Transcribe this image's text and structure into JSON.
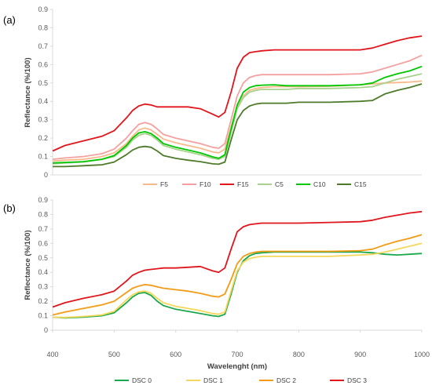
{
  "chart_data": [
    {
      "type": "line",
      "panel_label": "(a)",
      "ylabel": "Reflectance (%/100)",
      "xlabel": "",
      "xlim": [
        400,
        1000
      ],
      "ylim": [
        0,
        0.9
      ],
      "yticks": [
        "0",
        "0.1",
        "0.2",
        "0.3",
        "0.4",
        "0.5",
        "0.6",
        "0.7",
        "0.8",
        "0.9"
      ],
      "grid": false,
      "legend": "bottom",
      "x": [
        400,
        420,
        450,
        480,
        500,
        520,
        530,
        540,
        550,
        560,
        570,
        580,
        600,
        620,
        640,
        660,
        670,
        680,
        690,
        700,
        710,
        720,
        730,
        740,
        760,
        780,
        800,
        850,
        900,
        920,
        940,
        960,
        980,
        1000
      ],
      "series": [
        {
          "name": "F5",
          "color": "#f8b98a",
          "values": [
            0.075,
            0.08,
            0.085,
            0.1,
            0.12,
            0.17,
            0.21,
            0.245,
            0.255,
            0.245,
            0.22,
            0.195,
            0.175,
            0.16,
            0.145,
            0.125,
            0.12,
            0.14,
            0.26,
            0.37,
            0.43,
            0.46,
            0.47,
            0.475,
            0.48,
            0.48,
            0.48,
            0.482,
            0.49,
            0.495,
            0.5,
            0.502,
            0.505,
            0.51
          ]
        },
        {
          "name": "F10",
          "color": "#f4a0a0",
          "values": [
            0.085,
            0.092,
            0.1,
            0.115,
            0.14,
            0.2,
            0.24,
            0.275,
            0.285,
            0.275,
            0.25,
            0.22,
            0.2,
            0.185,
            0.17,
            0.15,
            0.145,
            0.17,
            0.3,
            0.43,
            0.5,
            0.53,
            0.54,
            0.545,
            0.545,
            0.545,
            0.545,
            0.545,
            0.55,
            0.56,
            0.58,
            0.6,
            0.62,
            0.65
          ]
        },
        {
          "name": "F15",
          "color": "#e0161c",
          "values": [
            0.13,
            0.16,
            0.185,
            0.21,
            0.24,
            0.31,
            0.35,
            0.375,
            0.385,
            0.38,
            0.37,
            0.37,
            0.37,
            0.37,
            0.36,
            0.33,
            0.315,
            0.34,
            0.45,
            0.58,
            0.64,
            0.665,
            0.67,
            0.675,
            0.68,
            0.68,
            0.68,
            0.68,
            0.68,
            0.69,
            0.71,
            0.73,
            0.745,
            0.755
          ]
        },
        {
          "name": "C5",
          "color": "#a8d18d",
          "values": [
            0.06,
            0.065,
            0.07,
            0.085,
            0.1,
            0.15,
            0.19,
            0.215,
            0.225,
            0.215,
            0.19,
            0.16,
            0.14,
            0.125,
            0.11,
            0.09,
            0.085,
            0.1,
            0.23,
            0.36,
            0.42,
            0.45,
            0.46,
            0.465,
            0.465,
            0.465,
            0.47,
            0.47,
            0.475,
            0.48,
            0.5,
            0.52,
            0.535,
            0.55
          ]
        },
        {
          "name": "C10",
          "color": "#00c800",
          "values": [
            0.065,
            0.068,
            0.072,
            0.085,
            0.105,
            0.16,
            0.2,
            0.228,
            0.235,
            0.225,
            0.2,
            0.17,
            0.15,
            0.135,
            0.12,
            0.098,
            0.09,
            0.11,
            0.25,
            0.38,
            0.45,
            0.475,
            0.485,
            0.488,
            0.49,
            0.485,
            0.485,
            0.485,
            0.49,
            0.5,
            0.53,
            0.55,
            0.565,
            0.59
          ]
        },
        {
          "name": "C15",
          "color": "#4e7b2a",
          "values": [
            0.045,
            0.045,
            0.05,
            0.055,
            0.07,
            0.11,
            0.135,
            0.15,
            0.155,
            0.15,
            0.13,
            0.105,
            0.09,
            0.08,
            0.072,
            0.06,
            0.058,
            0.07,
            0.19,
            0.3,
            0.35,
            0.375,
            0.385,
            0.39,
            0.39,
            0.39,
            0.395,
            0.395,
            0.4,
            0.405,
            0.44,
            0.46,
            0.475,
            0.495
          ]
        }
      ]
    },
    {
      "type": "line",
      "panel_label": "(b)",
      "ylabel": "Reflectance (%/100)",
      "xlabel": "Wavelenght (nm)",
      "xlim": [
        400,
        1000
      ],
      "ylim": [
        0,
        0.9
      ],
      "xticks": [
        "400",
        "500",
        "600",
        "700",
        "800",
        "900",
        "1000"
      ],
      "yticks": [
        "0",
        "0.1",
        "0.2",
        "0.3",
        "0.4",
        "0.5",
        "0.6",
        "0.7",
        "0.8",
        "0.9"
      ],
      "grid": false,
      "legend": "bottom",
      "x": [
        400,
        420,
        450,
        480,
        500,
        520,
        530,
        540,
        550,
        560,
        570,
        580,
        600,
        620,
        640,
        660,
        670,
        680,
        690,
        700,
        710,
        720,
        730,
        740,
        760,
        780,
        800,
        850,
        900,
        920,
        940,
        960,
        980,
        1000
      ],
      "series": [
        {
          "name": "DSC 0",
          "color": "#1aa84c",
          "values": [
            0.09,
            0.085,
            0.09,
            0.1,
            0.12,
            0.19,
            0.23,
            0.255,
            0.26,
            0.24,
            0.2,
            0.17,
            0.145,
            0.13,
            0.115,
            0.1,
            0.095,
            0.11,
            0.25,
            0.4,
            0.48,
            0.515,
            0.53,
            0.535,
            0.54,
            0.54,
            0.54,
            0.54,
            0.54,
            0.535,
            0.525,
            0.52,
            0.525,
            0.53
          ]
        },
        {
          "name": "DSC 1",
          "color": "#f5d75a",
          "values": [
            0.09,
            0.088,
            0.095,
            0.105,
            0.13,
            0.21,
            0.245,
            0.265,
            0.27,
            0.255,
            0.22,
            0.19,
            0.165,
            0.15,
            0.135,
            0.115,
            0.11,
            0.125,
            0.27,
            0.41,
            0.47,
            0.495,
            0.505,
            0.51,
            0.51,
            0.51,
            0.51,
            0.51,
            0.52,
            0.525,
            0.54,
            0.56,
            0.58,
            0.6
          ]
        },
        {
          "name": "DSC 2",
          "color": "#f39b15",
          "values": [
            0.105,
            0.125,
            0.15,
            0.175,
            0.2,
            0.26,
            0.29,
            0.305,
            0.315,
            0.31,
            0.3,
            0.29,
            0.28,
            0.27,
            0.255,
            0.235,
            0.23,
            0.25,
            0.35,
            0.46,
            0.51,
            0.53,
            0.54,
            0.545,
            0.545,
            0.545,
            0.545,
            0.545,
            0.55,
            0.56,
            0.59,
            0.615,
            0.635,
            0.66
          ]
        },
        {
          "name": "DSC 3",
          "color": "#e0161c",
          "values": [
            0.16,
            0.19,
            0.22,
            0.245,
            0.27,
            0.34,
            0.38,
            0.4,
            0.415,
            0.42,
            0.425,
            0.43,
            0.43,
            0.435,
            0.44,
            0.41,
            0.4,
            0.43,
            0.56,
            0.68,
            0.715,
            0.73,
            0.735,
            0.74,
            0.74,
            0.74,
            0.74,
            0.745,
            0.75,
            0.76,
            0.78,
            0.795,
            0.81,
            0.82
          ]
        }
      ]
    }
  ]
}
